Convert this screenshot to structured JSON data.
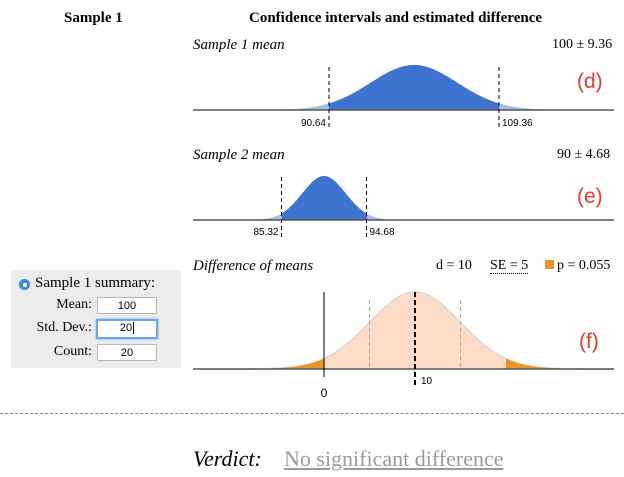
{
  "headers": {
    "sample_title": "Sample 1",
    "ci_title": "Confidence intervals and estimated difference"
  },
  "plots": {
    "sample1": {
      "title": "Sample 1 mean",
      "summary": "100 ± 9.36",
      "letter": "(d)",
      "lower": "90.64",
      "upper": "109.36",
      "mean": 100,
      "ci_low": 90.64,
      "ci_high": 109.36,
      "color": "#3e74cf"
    },
    "sample2": {
      "title": "Sample 2 mean",
      "summary": "90 ± 4.68",
      "letter": "(e)",
      "lower": "85.32",
      "upper": "94.68",
      "mean": 90,
      "ci_low": 85.32,
      "ci_high": 94.68,
      "color": "#3e74cf"
    },
    "difference": {
      "title": "Difference of means",
      "d_text": "d = 10",
      "se_text": "SE = 5",
      "p_text": "p = 0.055",
      "letter": "(f)",
      "zero_label": "0",
      "d_label": "10",
      "d": 10,
      "se": 5,
      "fill_color": "#fcdcc6",
      "tail_color": "#e8962a"
    }
  },
  "summary_panel": {
    "label": "Sample 1 summary:",
    "mean_label": "Mean:",
    "mean_value": "100",
    "sd_label": "Std. Dev.:",
    "sd_value": "20",
    "count_label": "Count:",
    "count_value": "20"
  },
  "verdict": {
    "label": "Verdict:",
    "text": "No significant difference"
  }
}
